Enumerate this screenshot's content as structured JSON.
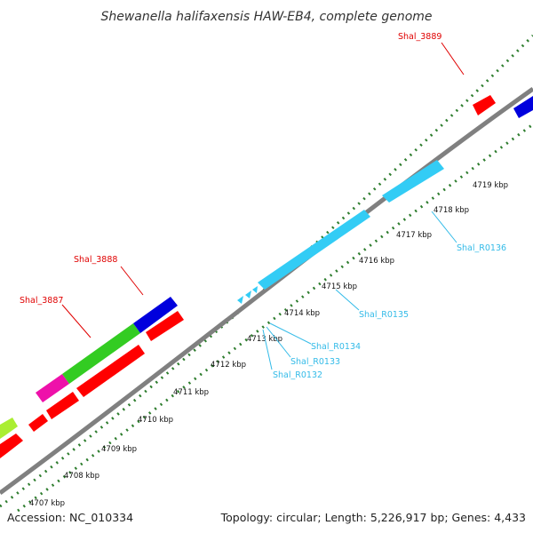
{
  "title": "Shewanella halifaxensis HAW-EB4, complete genome",
  "footer": {
    "accession": "Accession: NC_010334",
    "summary": "Topology: circular; Length: 5,226,917 bp; Genes: 4,433"
  },
  "colors": {
    "backbone": "#808080",
    "tick": "#2e7d2e",
    "label_red": "#e00000",
    "label_cyan": "#33bbe8",
    "gene_red": "#ff0000",
    "gene_blue": "#0000dd",
    "gene_green": "#33cc22",
    "gene_magenta": "#ee11aa",
    "gene_lime": "#aaee33",
    "gene_cyan": "#33ccf5"
  },
  "kbp_labels": [
    "4707 kbp",
    "4708 kbp",
    "4709 kbp",
    "4710 kbp",
    "4711 kbp",
    "4712 kbp",
    "4713 kbp",
    "4714 kbp",
    "4715 kbp",
    "4716 kbp",
    "4717 kbp",
    "4718 kbp",
    "4719 kbp"
  ],
  "gene_labels": [
    {
      "text": "Shal_3887",
      "color": "red"
    },
    {
      "text": "Shal_3888",
      "color": "red"
    },
    {
      "text": "Shal_3889",
      "color": "red"
    },
    {
      "text": "Shal_R0132",
      "color": "cyan"
    },
    {
      "text": "Shal_R0133",
      "color": "cyan"
    },
    {
      "text": "Shal_R0134",
      "color": "cyan"
    },
    {
      "text": "Shal_R0135",
      "color": "cyan"
    },
    {
      "text": "Shal_R0136",
      "color": "cyan"
    }
  ]
}
